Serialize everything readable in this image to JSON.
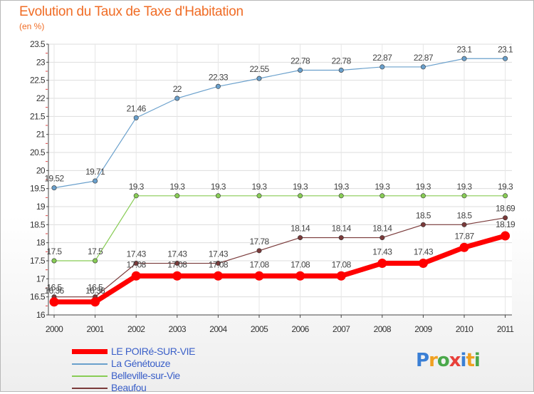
{
  "title": "Evolution du Taux de Taxe d'Habitation",
  "subtitle": "(en %)",
  "logo": {
    "text": "Proxiti",
    "colors": [
      "#3a7fd5",
      "#f0a020",
      "#4aa84a",
      "#e8403a",
      "#3a7fd5",
      "#f0a020",
      "#4aa84a"
    ]
  },
  "chart_data": {
    "type": "line",
    "x": [
      2000,
      2001,
      2002,
      2003,
      2004,
      2005,
      2006,
      2007,
      2008,
      2009,
      2010,
      2011
    ],
    "xticks": [
      "2000",
      "2001",
      "2002",
      "2003",
      "2004",
      "2005",
      "2006",
      "2007",
      "2008",
      "2009",
      "2010",
      "2011"
    ],
    "ylim": [
      16,
      23.5
    ],
    "yticks": [
      "16",
      "16.5",
      "17",
      "17.5",
      "18",
      "18.5",
      "19",
      "19.5",
      "20",
      "20.5",
      "21",
      "21.5",
      "22",
      "22.5",
      "23",
      "23.5"
    ],
    "legend_position": "bottom-left",
    "series": [
      {
        "name": "La Génétouze",
        "color": "#6aa0cc",
        "values": [
          19.52,
          19.71,
          21.46,
          22,
          22.33,
          22.55,
          22.78,
          22.78,
          22.87,
          22.87,
          23.1,
          23.1
        ],
        "labels": [
          "19.52",
          "19.71",
          "21.46",
          "22",
          "22.33",
          "22.55",
          "22.78",
          "22.78",
          "22.87",
          "22.87",
          "23.1",
          "23.1"
        ]
      },
      {
        "name": "Belleville-sur-Vie",
        "color": "#88cc55",
        "values": [
          17.5,
          17.5,
          19.3,
          19.3,
          19.3,
          19.3,
          19.3,
          19.3,
          19.3,
          19.3,
          19.3,
          19.3
        ],
        "labels": [
          "17.5",
          "17.5",
          "19.3",
          "19.3",
          "19.3",
          "19.3",
          "19.3",
          "19.3",
          "19.3",
          "19.3",
          "19.3",
          "19.3"
        ]
      },
      {
        "name": "Beaufou",
        "color": "#7a3a3a",
        "values": [
          16.5,
          16.5,
          17.43,
          17.43,
          17.43,
          17.78,
          18.14,
          18.14,
          18.14,
          18.5,
          18.5,
          18.69
        ],
        "labels": [
          "16.5",
          "16.5",
          "17.43",
          "17.43",
          "17.43",
          "17.78",
          "18.14",
          "18.14",
          "18.14",
          "18.5",
          "18.5",
          "18.69"
        ]
      },
      {
        "name": "LE POIRé-SUR-VIE",
        "color": "#ff0000",
        "values": [
          16.36,
          16.36,
          17.08,
          17.08,
          17.08,
          17.08,
          17.08,
          17.08,
          17.43,
          17.43,
          17.87,
          18.19
        ],
        "labels": [
          "16.36",
          "16.36",
          "17.08",
          "17.08",
          "17.08",
          "17.08",
          "17.08",
          "17.08",
          "17.43",
          "17.43",
          "17.87",
          "18.19"
        ]
      }
    ],
    "legend": [
      "LE POIRé-SUR-VIE",
      "La Génétouze",
      "Belleville-sur-Vie",
      "Beaufou"
    ]
  }
}
